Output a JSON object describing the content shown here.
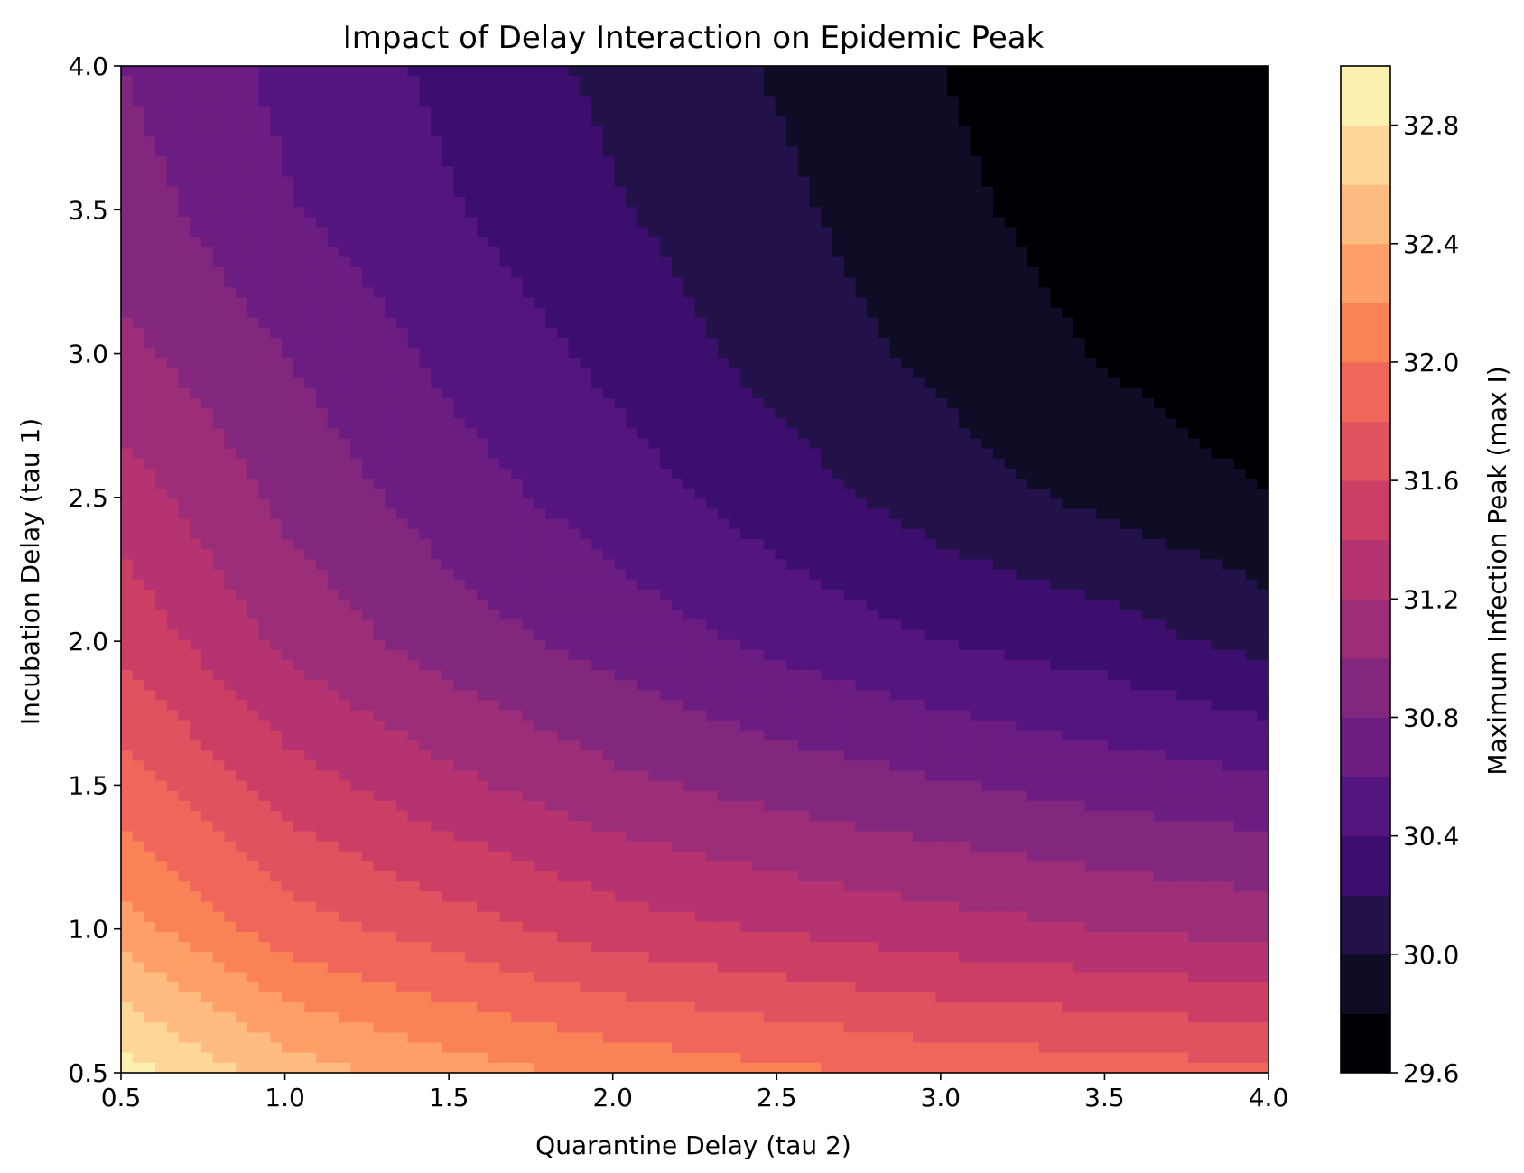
{
  "chart_data": {
    "type": "contour",
    "title": "Impact of Delay Interaction on Epidemic Peak",
    "xlabel": "Quarantine Delay (tau 2)",
    "ylabel": "Incubation Delay (tau 1)",
    "xlim": [
      0.5,
      4.0
    ],
    "ylim": [
      0.5,
      4.0
    ],
    "x_ticks": [
      "0.5",
      "1.0",
      "1.5",
      "2.0",
      "2.5",
      "3.0",
      "3.5",
      "4.0"
    ],
    "y_ticks": [
      "0.5",
      "1.0",
      "1.5",
      "2.0",
      "2.5",
      "3.0",
      "3.5",
      "4.0"
    ],
    "colorbar": {
      "label": "Maximum Infection Peak (max I)",
      "min": 29.6,
      "max": 33.0,
      "level_step": 0.2,
      "tick_labels": [
        "29.6",
        "30.0",
        "30.4",
        "30.8",
        "31.2",
        "31.6",
        "32.0",
        "32.4",
        "32.8"
      ],
      "colormap": "magma",
      "colors": [
        "#000004",
        "#0f0c26",
        "#221249",
        "#3c0f6e",
        "#541580",
        "#6b1d82",
        "#82267e",
        "#9b2d79",
        "#b43370",
        "#cd3e65",
        "#e05260",
        "#f0665a",
        "#fa8257",
        "#fe9f69",
        "#ffbb80",
        "#fdd698",
        "#fcf0b0"
      ]
    },
    "z_samples": {
      "tau2": [
        0.5,
        1.0,
        1.5,
        2.0,
        2.5,
        3.0,
        3.5,
        4.0
      ],
      "tau1": [
        0.5,
        1.0,
        1.5,
        2.0,
        2.5,
        3.0,
        3.5,
        4.0
      ],
      "values": [
        [
          32.9,
          32.5,
          32.3,
          32.15,
          32.05,
          31.95,
          31.9,
          31.85
        ],
        [
          32.3,
          31.9,
          31.7,
          31.5,
          31.38,
          31.28,
          31.2,
          31.12
        ],
        [
          31.9,
          31.5,
          31.25,
          31.05,
          30.92,
          30.82,
          30.72,
          30.65
        ],
        [
          31.55,
          31.15,
          30.9,
          30.72,
          30.55,
          30.4,
          30.3,
          30.12
        ],
        [
          31.3,
          30.95,
          30.7,
          30.5,
          30.3,
          30.1,
          29.95,
          29.8
        ],
        [
          31.05,
          30.8,
          30.55,
          30.35,
          30.12,
          29.95,
          29.78,
          29.65
        ],
        [
          30.9,
          30.62,
          30.42,
          30.22,
          30.05,
          29.85,
          29.7,
          29.6
        ],
        [
          30.8,
          30.55,
          30.35,
          30.15,
          29.98,
          29.8,
          29.65,
          29.58
        ]
      ]
    }
  }
}
